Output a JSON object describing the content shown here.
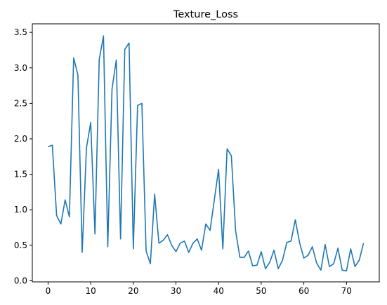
{
  "chart_data": {
    "type": "line",
    "title": "Texture_Loss",
    "xlabel": "",
    "ylabel": "",
    "xlim": [
      -3.7,
      77.7
    ],
    "ylim": [
      -0.015,
      3.62
    ],
    "xticks": [
      0,
      10,
      20,
      30,
      40,
      50,
      60,
      70
    ],
    "xtick_labels": [
      "0",
      "10",
      "20",
      "30",
      "40",
      "50",
      "60",
      "70"
    ],
    "yticks": [
      0.0,
      0.5,
      1.0,
      1.5,
      2.0,
      2.5,
      3.0,
      3.5
    ],
    "ytick_labels": [
      "0.0",
      "0.5",
      "1.0",
      "1.5",
      "2.0",
      "2.5",
      "3.0",
      "3.5"
    ],
    "grid": false,
    "legend": "none",
    "series": [
      {
        "color": "#1f77b4",
        "x": [
          0,
          1,
          2,
          3,
          4,
          5,
          6,
          7,
          8,
          9,
          10,
          11,
          12,
          13,
          14,
          15,
          16,
          17,
          18,
          19,
          20,
          21,
          22,
          23,
          24,
          25,
          26,
          27,
          28,
          29,
          30,
          31,
          32,
          33,
          34,
          35,
          36,
          37,
          38,
          39,
          40,
          41,
          42,
          43,
          44,
          45,
          46,
          47,
          48,
          49,
          50,
          51,
          52,
          53,
          54,
          55,
          56,
          57,
          58,
          59,
          60,
          61,
          62,
          63,
          64,
          65,
          66,
          67,
          68,
          69,
          70,
          71,
          72,
          73,
          74
        ],
        "y": [
          1.89,
          1.91,
          0.92,
          0.8,
          1.14,
          0.9,
          3.14,
          2.9,
          0.4,
          1.87,
          2.23,
          0.66,
          3.12,
          3.45,
          0.48,
          2.7,
          3.11,
          0.59,
          3.26,
          3.35,
          0.45,
          2.47,
          2.5,
          0.42,
          0.24,
          1.22,
          0.53,
          0.57,
          0.65,
          0.5,
          0.41,
          0.53,
          0.56,
          0.4,
          0.53,
          0.59,
          0.43,
          0.8,
          0.71,
          1.14,
          1.57,
          0.45,
          1.86,
          1.76,
          0.7,
          0.33,
          0.33,
          0.42,
          0.21,
          0.22,
          0.41,
          0.17,
          0.26,
          0.43,
          0.17,
          0.29,
          0.54,
          0.56,
          0.86,
          0.54,
          0.32,
          0.36,
          0.48,
          0.25,
          0.15,
          0.51,
          0.2,
          0.24,
          0.46,
          0.15,
          0.14,
          0.45,
          0.2,
          0.29,
          0.53
        ]
      }
    ]
  }
}
